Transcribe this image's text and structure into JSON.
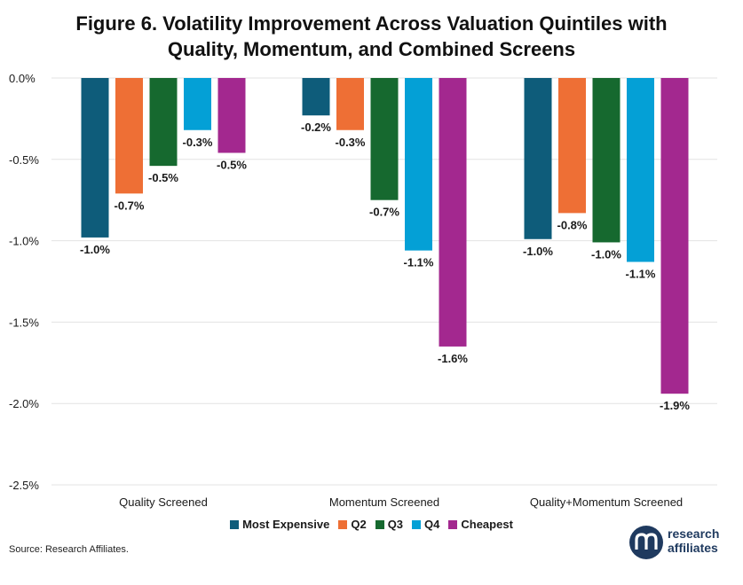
{
  "title_line1": "Figure 6. Volatility Improvement Across Valuation Quintiles with",
  "title_line2": "Quality, Momentum, and Combined Screens",
  "source": "Source: Research Affiliates.",
  "logo": {
    "line1": "research",
    "line2": "affiliates"
  },
  "chart_data": {
    "type": "bar",
    "categories": [
      "Quality Screened",
      "Momentum Screened",
      "Quality+Momentum Screened"
    ],
    "series": [
      {
        "name": "Most Expensive",
        "color": "#0e5c7a",
        "values": [
          -0.98,
          -0.23,
          -0.99
        ],
        "labels": [
          "-1.0%",
          "-0.2%",
          "-1.0%"
        ]
      },
      {
        "name": "Q2",
        "color": "#ee6f35",
        "values": [
          -0.71,
          -0.32,
          -0.83
        ],
        "labels": [
          "-0.7%",
          "-0.3%",
          "-0.8%"
        ]
      },
      {
        "name": "Q3",
        "color": "#16692f",
        "values": [
          -0.54,
          -0.75,
          -1.01
        ],
        "labels": [
          "-0.5%",
          "-0.7%",
          "-1.0%"
        ]
      },
      {
        "name": "Q4",
        "color": "#04a0d6",
        "values": [
          -0.32,
          -1.06,
          -1.13
        ],
        "labels": [
          "-0.3%",
          "-1.1%",
          "-1.1%"
        ]
      },
      {
        "name": "Cheapest",
        "color": "#a3288f",
        "values": [
          -0.46,
          -1.65,
          -1.94
        ],
        "labels": [
          "-0.5%",
          "-1.6%",
          "-1.9%"
        ]
      }
    ],
    "yticks": [
      0,
      -0.5,
      -1.0,
      -1.5,
      -2.0,
      -2.5
    ],
    "ytick_labels": [
      "0.0%",
      "-0.5%",
      "-1.0%",
      "-1.5%",
      "-2.0%",
      "-2.5%"
    ],
    "ylim": [
      -2.5,
      0
    ],
    "grid": true,
    "legend_position": "bottom"
  }
}
